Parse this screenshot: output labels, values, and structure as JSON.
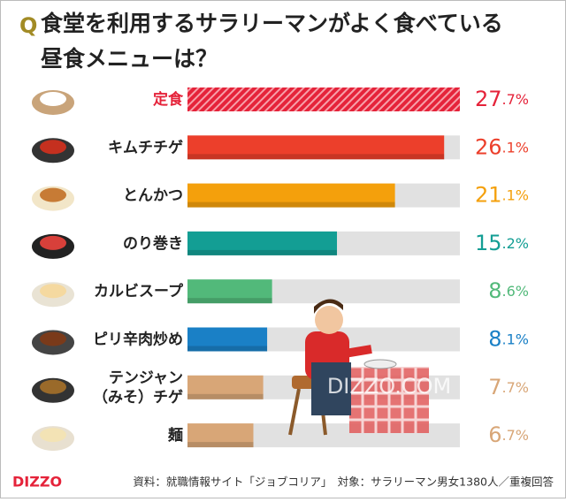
{
  "chart_data": {
    "type": "bar",
    "orientation": "horizontal",
    "title_marker": "Q",
    "title": "食堂を利用するサラリーマンがよく食べている",
    "subtitle": "昼食メニューは？",
    "categories": [
      "定食",
      "キムチチゲ",
      "とんかつ",
      "のり巻き",
      "カルビスープ",
      "ピリ辛肉炒め",
      "テンジャン\n（みそ）チゲ",
      "麺"
    ],
    "values": [
      27.7,
      26.1,
      21.1,
      15.2,
      8.6,
      8.1,
      7.7,
      6.7
    ],
    "value_labels": [
      "27.7%",
      "26.1%",
      "21.1%",
      "15.2%",
      "8.6%",
      "8.1%",
      "7.7%",
      "6.7%"
    ],
    "colors": [
      "#e5233a",
      "#ec3f2b",
      "#f4a00c",
      "#139e94",
      "#52b97a",
      "#1a80c6",
      "#d8a677",
      "#d8a677"
    ],
    "highlight": [
      true,
      false,
      false,
      false,
      false,
      false,
      false,
      false
    ],
    "logo": "DIZZO",
    "watermark": "DIZZO.COM",
    "source": "資料：就職情報サイト「ジョブコリア」　対象：サラリーマン男女1380人／重複回答"
  }
}
